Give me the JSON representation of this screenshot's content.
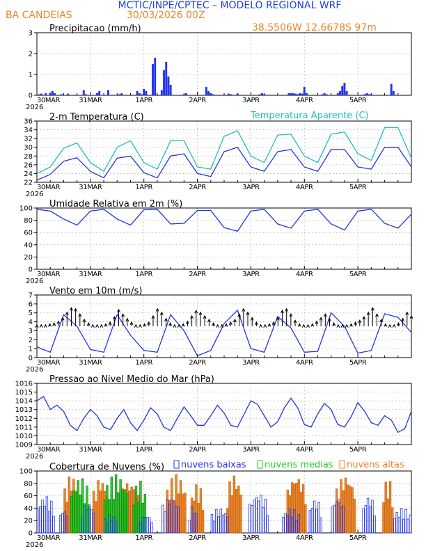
{
  "header": {
    "title": "MCTIC/INPE/CPTEC – MODELO REGIONAL WRF",
    "location": "BA CANDEIAS",
    "run": "30/03/2026 00Z",
    "coords": "38.5506W 12.6678S 97m"
  },
  "colors": {
    "title_blue": "#1f3fe0",
    "header_orange": "#e8862a",
    "precip_bar": "#2233ee",
    "temp_line": "#2233dd",
    "apparent_line": "#22bbbb",
    "low_cloud": "#2233ee",
    "mid_cloud": "#22cc22",
    "high_cloud": "#f08020"
  },
  "time_axis": {
    "labels": [
      "30MAR",
      "31MAR",
      "1APR",
      "2APR",
      "3APR",
      "4APR",
      "5APR"
    ],
    "year": "2026"
  },
  "chart_data": [
    {
      "type": "bar",
      "name": "precip",
      "title": "Precipitacao (mm/h)",
      "ylim": [
        0,
        3
      ],
      "yticks": [
        0,
        1,
        2,
        3
      ],
      "x_unit": "hours since 30MAR 00Z",
      "x": [
        1,
        2,
        4,
        6,
        7,
        8,
        11,
        14,
        21,
        22,
        27,
        28,
        32,
        37,
        38,
        45,
        46,
        47,
        48,
        49,
        52,
        53,
        56,
        57,
        58,
        59,
        60,
        66,
        67,
        76,
        77,
        78,
        79,
        86,
        87,
        90,
        100,
        101,
        102,
        113,
        114,
        115,
        116,
        117,
        118,
        119,
        120,
        121,
        128,
        129,
        130,
        135,
        136,
        137,
        138,
        139,
        147,
        148,
        149,
        150,
        159,
        160
      ],
      "values": [
        0.05,
        0.08,
        0.1,
        0.12,
        0.2,
        0.1,
        0.05,
        0.08,
        0.25,
        0.05,
        0.1,
        0.2,
        0.25,
        0.05,
        0.1,
        0.2,
        0.1,
        0.05,
        0.3,
        0.2,
        1.5,
        1.8,
        0.25,
        1.2,
        1.6,
        0.9,
        0.5,
        0.05,
        0.1,
        0.4,
        0.2,
        0.1,
        0.05,
        0.08,
        0.05,
        0.08,
        0.05,
        0.1,
        0.05,
        0.1,
        0.1,
        0.1,
        0.08,
        0.05,
        0.1,
        0.08,
        0.4,
        0.1,
        0.05,
        0.1,
        0.05,
        0.1,
        0.2,
        0.45,
        0.6,
        0.2,
        0.05,
        0.1,
        0.05,
        0.05,
        0.55,
        0.2
      ]
    },
    {
      "type": "line",
      "name": "temperature",
      "title": "2-m Temperatura (C)",
      "legend": "Temperatura Aparente (C)",
      "ylim": [
        22,
        36
      ],
      "yticks": [
        22,
        24,
        26,
        28,
        30,
        32,
        34,
        36
      ],
      "x": [
        0,
        6,
        12,
        18,
        24,
        30,
        36,
        42,
        48,
        54,
        60,
        66,
        72,
        78,
        84,
        90,
        96,
        102,
        108,
        114,
        120,
        126,
        132,
        138,
        144,
        150,
        156,
        162,
        168
      ],
      "series": [
        {
          "name": "Temperatura",
          "values": [
            22.5,
            23.8,
            26.8,
            27.6,
            24.5,
            23.0,
            27.5,
            28.0,
            24.2,
            23.0,
            28.0,
            28.5,
            24.0,
            23.3,
            29.0,
            30.0,
            25.5,
            24.5,
            29.0,
            29.5,
            25.5,
            24.5,
            29.5,
            29.5,
            25.5,
            25.0,
            30.0,
            30.0,
            25.5
          ]
        },
        {
          "name": "Temperatura Aparente",
          "values": [
            24.0,
            25.5,
            29.8,
            31.0,
            26.5,
            24.5,
            30.0,
            31.5,
            26.5,
            25.0,
            31.5,
            31.5,
            25.5,
            25.0,
            32.5,
            33.8,
            28.0,
            26.5,
            32.8,
            33.0,
            28.0,
            26.5,
            33.0,
            33.5,
            28.5,
            27.0,
            34.5,
            34.5,
            27.5
          ]
        }
      ]
    },
    {
      "type": "line",
      "name": "humidity",
      "title": "Umidade Relativa em 2m (%)",
      "ylim": [
        0,
        100
      ],
      "yticks": [
        0,
        20,
        40,
        60,
        80,
        100
      ],
      "x": [
        0,
        6,
        12,
        18,
        24,
        30,
        36,
        42,
        48,
        54,
        60,
        66,
        72,
        78,
        84,
        90,
        96,
        102,
        108,
        114,
        120,
        126,
        132,
        138,
        144,
        150,
        156,
        162,
        168
      ],
      "values": [
        98,
        95,
        82,
        72,
        95,
        98,
        82,
        72,
        97,
        98,
        74,
        75,
        96,
        96,
        68,
        62,
        95,
        98,
        74,
        67,
        95,
        98,
        74,
        64,
        95,
        98,
        75,
        67,
        90
      ]
    },
    {
      "type": "line",
      "name": "wind",
      "title": "Vento em 10m (m/s)",
      "ylim": [
        0,
        7
      ],
      "yticks": [
        0,
        1,
        2,
        3,
        4,
        5,
        6,
        7
      ],
      "x": [
        0,
        6,
        12,
        18,
        24,
        30,
        36,
        42,
        48,
        54,
        60,
        66,
        72,
        78,
        84,
        90,
        96,
        102,
        108,
        114,
        120,
        126,
        132,
        138,
        144,
        150,
        156,
        162,
        168
      ],
      "values": [
        1.2,
        0.6,
        4.8,
        3.5,
        0.9,
        0.6,
        4.8,
        2.5,
        0.8,
        0.6,
        4.8,
        3.0,
        0.2,
        0.8,
        3.8,
        5.3,
        1.0,
        0.6,
        4.6,
        3.3,
        0.6,
        0.7,
        5.0,
        3.5,
        0.5,
        0.8,
        4.9,
        4.5,
        2.8
      ],
      "barb_speeds": [
        3.6,
        3.6,
        3.6,
        3.7,
        3.8,
        4.0,
        4.4,
        5.0,
        5.5,
        5.4,
        4.8,
        4.2,
        3.8,
        3.6,
        3.6,
        3.6,
        3.7,
        3.9,
        4.5,
        5.3,
        4.8,
        4.3,
        3.9,
        3.6,
        3.6,
        3.7,
        3.9,
        4.6,
        5.4,
        5.0,
        4.3,
        3.8,
        3.6,
        3.6,
        3.7,
        4.0,
        4.6,
        5.2,
        5.0,
        4.6,
        4.2,
        3.8,
        3.6,
        3.6,
        3.7,
        3.9,
        4.2,
        4.8,
        5.4,
        5.0,
        4.4,
        3.9,
        3.6,
        3.6,
        3.7,
        3.9,
        4.4,
        5.2,
        5.4,
        4.8,
        4.1,
        3.7,
        3.6,
        3.6,
        3.7,
        4.0,
        4.4,
        4.8,
        4.3,
        3.8,
        3.6,
        3.6,
        3.6,
        3.7,
        3.9,
        4.1,
        4.5,
        5.0,
        5.5,
        4.8,
        4.2,
        3.7,
        3.6,
        3.6,
        3.8,
        4.3,
        5.0,
        4.6
      ]
    },
    {
      "type": "line",
      "name": "pressure",
      "title": "Pressao ao Nivel Medio do Mar (hPa)",
      "ylim": [
        1009,
        1016
      ],
      "yticks": [
        1009,
        1010,
        1011,
        1012,
        1013,
        1014,
        1015,
        1016
      ],
      "x": [
        0,
        3,
        6,
        9,
        12,
        15,
        18,
        21,
        24,
        27,
        30,
        33,
        36,
        39,
        42,
        45,
        48,
        51,
        54,
        57,
        60,
        63,
        66,
        69,
        72,
        75,
        78,
        81,
        84,
        87,
        90,
        93,
        96,
        99,
        102,
        105,
        108,
        111,
        114,
        117,
        120,
        123,
        126,
        129,
        132,
        135,
        138,
        141,
        144,
        147,
        150,
        153,
        156,
        159,
        162,
        165,
        168
      ],
      "values": [
        1014.0,
        1014.5,
        1013.0,
        1013.5,
        1012.8,
        1011.2,
        1010.6,
        1012.0,
        1013.0,
        1012.3,
        1011.0,
        1010.7,
        1012.0,
        1013.0,
        1011.5,
        1010.6,
        1011.8,
        1013.2,
        1012.5,
        1011.0,
        1010.6,
        1012.0,
        1013.3,
        1012.3,
        1011.2,
        1011.2,
        1012.3,
        1013.5,
        1012.6,
        1011.2,
        1011.0,
        1012.5,
        1014.0,
        1013.6,
        1012.3,
        1011.0,
        1011.6,
        1013.2,
        1014.3,
        1013.2,
        1011.3,
        1011.0,
        1012.5,
        1013.7,
        1013.0,
        1011.3,
        1011.0,
        1012.2,
        1013.8,
        1012.8,
        1011.5,
        1011.2,
        1012.3,
        1011.8,
        1010.4,
        1010.8,
        1012.8
      ]
    },
    {
      "type": "bar",
      "name": "clouds",
      "title": "Cobertura de Nuvens (%)",
      "legend": [
        "nuvens baixas",
        "nuvens medias",
        "nuvens altas"
      ],
      "ylim": [
        0,
        100
      ],
      "yticks": [
        0,
        20,
        40,
        60,
        80,
        100
      ],
      "x_unit": "hours since 30MAR 00Z",
      "series": [
        {
          "name": "nuvens altas",
          "ranges": [
            [
              12,
              19,
              95
            ],
            [
              25,
              32,
              90
            ],
            [
              37,
              46,
              85
            ],
            [
              58,
              67,
              95
            ],
            [
              69,
              75,
              80
            ],
            [
              85,
              92,
              95
            ],
            [
              112,
              121,
              95
            ],
            [
              134,
              143,
              95
            ],
            [
              155,
              160,
              90
            ]
          ]
        },
        {
          "name": "nuvens medias",
          "ranges": [
            [
              15,
              24,
              90
            ],
            [
              30,
              41,
              95
            ],
            [
              43,
              49,
              85
            ]
          ]
        },
        {
          "name": "nuvens baixas",
          "ranges": [
            [
              0,
              8,
              60
            ],
            [
              10,
              14,
              40
            ],
            [
              20,
              26,
              50
            ],
            [
              30,
              36,
              30
            ],
            [
              46,
              52,
              30
            ],
            [
              56,
              64,
              60
            ],
            [
              68,
              72,
              45
            ],
            [
              78,
              86,
              40
            ],
            [
              95,
              104,
              65
            ],
            [
              110,
              118,
              40
            ],
            [
              122,
              128,
              55
            ],
            [
              132,
              138,
              60
            ],
            [
              146,
              152,
              60
            ],
            [
              160,
              168,
              40
            ]
          ]
        }
      ]
    }
  ]
}
